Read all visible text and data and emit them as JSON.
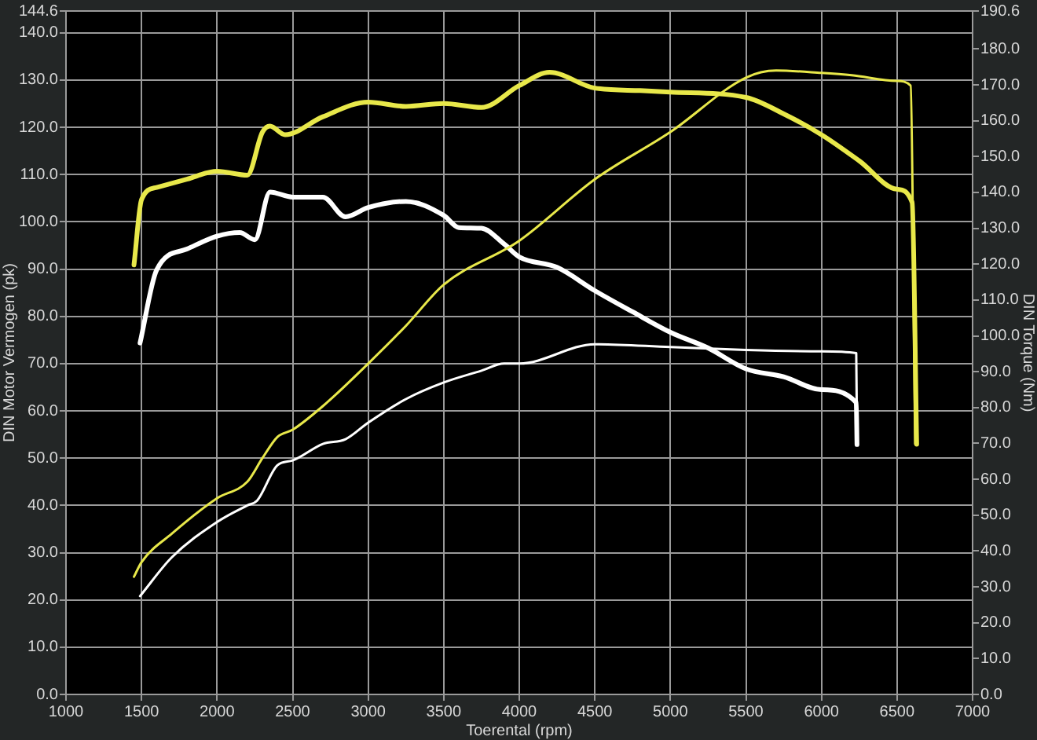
{
  "chart_data": {
    "type": "line",
    "xlabel": "Toerental (rpm)",
    "ylabel": "DIN Motor Vermogen (pk)",
    "y2label": "DIN Torque (Nm)",
    "grid": true,
    "legend": false,
    "marker": "none",
    "line_style": "solid",
    "xlim": [
      1000,
      7000
    ],
    "xticks": [
      1000,
      1500,
      2000,
      2500,
      3000,
      3500,
      4000,
      4500,
      5000,
      5500,
      6000,
      6500,
      7000
    ],
    "ylim": [
      0,
      144.6
    ],
    "yticks": [
      {
        "value": 0,
        "label": "0.0"
      },
      {
        "value": 10,
        "label": "10.0"
      },
      {
        "value": 20,
        "label": "20.0"
      },
      {
        "value": 30,
        "label": "30.0"
      },
      {
        "value": 40,
        "label": "40.0"
      },
      {
        "value": 50,
        "label": "50.0"
      },
      {
        "value": 60,
        "label": "60.0"
      },
      {
        "value": 70,
        "label": "70.0"
      },
      {
        "value": 80,
        "label": "80.0"
      },
      {
        "value": 90,
        "label": "90.0"
      },
      {
        "value": 100,
        "label": "100.0"
      },
      {
        "value": 110,
        "label": "110.0"
      },
      {
        "value": 120,
        "label": "120.0"
      },
      {
        "value": 130,
        "label": "130.0"
      },
      {
        "value": 140,
        "label": "140.0"
      },
      144.6
    ],
    "y2lim": [
      0,
      190.6
    ],
    "y2ticks": [
      {
        "value": 0,
        "label": "0.0"
      },
      {
        "value": 10,
        "label": "10.0"
      },
      {
        "value": 20,
        "label": "20.0"
      },
      {
        "value": 30,
        "label": "30.0"
      },
      {
        "value": 40,
        "label": "40.0"
      },
      {
        "value": 50,
        "label": "50.0"
      },
      {
        "value": 60,
        "label": "60.0"
      },
      {
        "value": 70,
        "label": "70.0"
      },
      {
        "value": 80,
        "label": "80.0"
      },
      {
        "value": 90,
        "label": "90.0"
      },
      {
        "value": 100,
        "label": "100.0"
      },
      {
        "value": 110,
        "label": "110.0"
      },
      {
        "value": 120,
        "label": "120.0"
      },
      {
        "value": 130,
        "label": "130.0"
      },
      {
        "value": 140,
        "label": "140.0"
      },
      {
        "value": 150,
        "label": "150.0"
      },
      {
        "value": 160,
        "label": "160.0"
      },
      {
        "value": 170,
        "label": "170.0"
      },
      {
        "value": 180,
        "label": "180.0"
      },
      190.6
    ],
    "series": [
      {
        "color": "#e8e84a",
        "x": [
          1450,
          1500,
          1700,
          2000,
          2200,
          2300,
          2400,
          2500,
          2700,
          3000,
          3250,
          3500,
          4000,
          4500,
          5000,
          5500,
          5700,
          6000,
          6200,
          6500,
          6590,
          6620
        ],
        "values": [
          24.9,
          28,
          34,
          41.5,
          45,
          50,
          54.5,
          56,
          61,
          70,
          78,
          86.7,
          96,
          109,
          119,
          130.5,
          132,
          131.5,
          131,
          129.8,
          128.8,
          53
        ]
      },
      {
        "color": "#e8e84a",
        "axis": "y2",
        "x": [
          1450,
          1500,
          1600,
          1800,
          2000,
          2200,
          2300,
          2350,
          2450,
          2700,
          3000,
          3250,
          3500,
          3750,
          4000,
          4200,
          4500,
          4800,
          5000,
          5500,
          5750,
          6000,
          6250,
          6500,
          6600,
          6630
        ],
        "values": [
          119.8,
          138,
          141.4,
          143.7,
          145.9,
          144.8,
          156.8,
          158.5,
          156.1,
          161.1,
          165.2,
          164,
          164.8,
          163.7,
          169.8,
          173.5,
          169.1,
          168.4,
          168,
          166.5,
          161.9,
          156.1,
          148.8,
          140.9,
          137.2,
          69.8
        ]
      },
      {
        "color": "#ffffff",
        "x": [
          1490,
          1700,
          2000,
          2200,
          2265,
          2400,
          2500,
          2700,
          2850,
          3000,
          3250,
          3500,
          3750,
          3900,
          4000,
          4500,
          5000,
          5500,
          6000,
          6230,
          6235
        ],
        "values": [
          20.8,
          29,
          36.5,
          40,
          41,
          48.5,
          49.5,
          53,
          54,
          57.5,
          62.5,
          66,
          68.5,
          70,
          70,
          74.1,
          73.5,
          72.9,
          72.6,
          72.2,
          53.1
        ]
      },
      {
        "color": "#ffffff",
        "axis": "y2",
        "x": [
          1490,
          1600,
          1800,
          2000,
          2150,
          2250,
          2350,
          2500,
          2700,
          2850,
          3000,
          3250,
          3500,
          3600,
          3750,
          3900,
          4000,
          4250,
          4500,
          4750,
          5000,
          5250,
          5500,
          5750,
          6000,
          6230,
          6235
        ],
        "values": [
          98,
          118.4,
          124.2,
          127.8,
          128.8,
          126.8,
          140.1,
          138.7,
          138.7,
          133.2,
          135.8,
          137.5,
          133.6,
          130.2,
          130,
          125.6,
          122,
          119.1,
          112.6,
          106.7,
          101,
          96.6,
          90.8,
          88.6,
          85,
          81.4,
          69.7
        ]
      }
    ]
  }
}
